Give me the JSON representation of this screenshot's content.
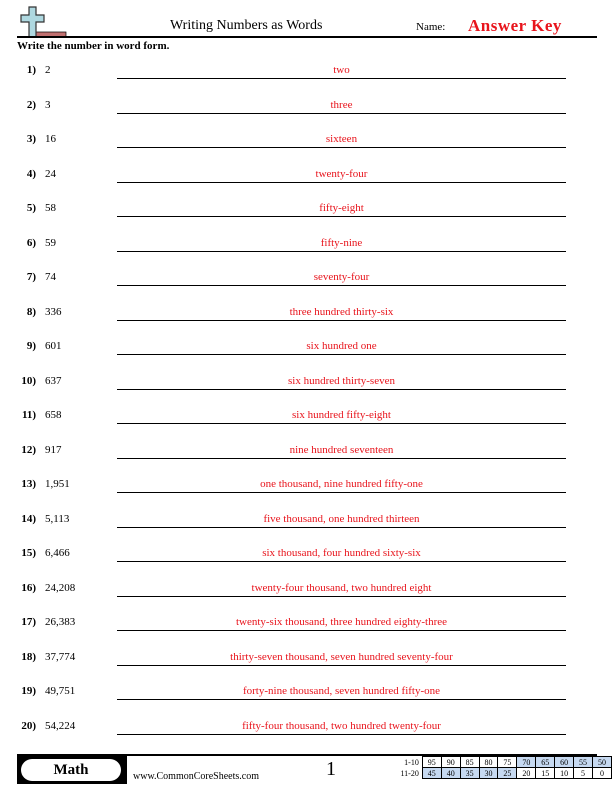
{
  "header": {
    "title": "Writing Numbers as Words",
    "name_label": "Name:",
    "answer_key": "Answer Key",
    "logo_icon": "plus-minus-icon"
  },
  "instructions": "Write the number in word form.",
  "problems": [
    {
      "n": "1)",
      "value": "2",
      "answer": "two"
    },
    {
      "n": "2)",
      "value": "3",
      "answer": "three"
    },
    {
      "n": "3)",
      "value": "16",
      "answer": "sixteen"
    },
    {
      "n": "4)",
      "value": "24",
      "answer": "twenty-four"
    },
    {
      "n": "5)",
      "value": "58",
      "answer": "fifty-eight"
    },
    {
      "n": "6)",
      "value": "59",
      "answer": "fifty-nine"
    },
    {
      "n": "7)",
      "value": "74",
      "answer": "seventy-four"
    },
    {
      "n": "8)",
      "value": "336",
      "answer": "three hundred thirty-six"
    },
    {
      "n": "9)",
      "value": "601",
      "answer": "six hundred one"
    },
    {
      "n": "10)",
      "value": "637",
      "answer": "six hundred thirty-seven"
    },
    {
      "n": "11)",
      "value": "658",
      "answer": "six hundred fifty-eight"
    },
    {
      "n": "12)",
      "value": "917",
      "answer": "nine hundred seventeen"
    },
    {
      "n": "13)",
      "value": "1,951",
      "answer": "one thousand, nine hundred fifty-one"
    },
    {
      "n": "14)",
      "value": "5,113",
      "answer": "five thousand, one hundred thirteen"
    },
    {
      "n": "15)",
      "value": "6,466",
      "answer": "six thousand, four hundred sixty-six"
    },
    {
      "n": "16)",
      "value": "24,208",
      "answer": "twenty-four thousand, two hundred eight"
    },
    {
      "n": "17)",
      "value": "26,383",
      "answer": "twenty-six thousand, three hundred eighty-three"
    },
    {
      "n": "18)",
      "value": "37,774",
      "answer": "thirty-seven thousand, seven hundred seventy-four"
    },
    {
      "n": "19)",
      "value": "49,751",
      "answer": "forty-nine thousand, seven hundred fifty-one"
    },
    {
      "n": "20)",
      "value": "54,224",
      "answer": "fifty-four thousand, two hundred twenty-four"
    }
  ],
  "footer": {
    "subject": "Math",
    "site": "www.CommonCoreSheets.com",
    "page": "1",
    "score_rows": [
      {
        "label": "1-10",
        "scores": [
          "95",
          "90",
          "85",
          "80",
          "75",
          "70",
          "65",
          "60",
          "55",
          "50"
        ]
      },
      {
        "label": "11-20",
        "scores": [
          "45",
          "40",
          "35",
          "30",
          "25",
          "20",
          "15",
          "10",
          "5",
          "0"
        ]
      }
    ]
  },
  "colors": {
    "answer": "#e8141c",
    "highlight": "#c6d9f1"
  }
}
